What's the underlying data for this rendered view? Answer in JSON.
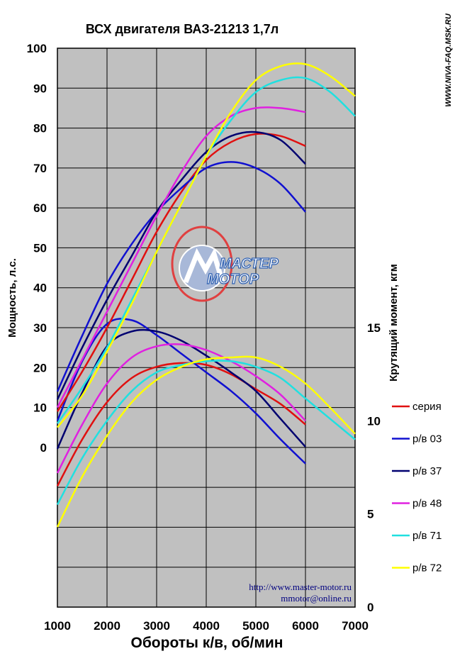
{
  "chart_data": {
    "type": "line",
    "title": "ВСХ двигателя ВАЗ-21213  1,7л",
    "xlabel": "Обороты к/в, об/мин",
    "ylabel": "Мощность, л.с.",
    "y2label": "Крутящий момент, кгм",
    "xlim": [
      1000,
      7000
    ],
    "ylim": [
      -40,
      100
    ],
    "y2lim": [
      0,
      30
    ],
    "xticks": [
      "1000",
      "2000",
      "3000",
      "4000",
      "5000",
      "6000",
      "7000"
    ],
    "yticks": [
      "100",
      "90",
      "80",
      "70",
      "60",
      "50",
      "40",
      "30",
      "20",
      "10",
      "0"
    ],
    "y2ticks": [
      "15",
      "10",
      "5",
      "0"
    ],
    "grid": true,
    "legend_position": "right",
    "power_series": [
      {
        "name": "серия",
        "color": "#e01010",
        "x": [
          1000,
          1500,
          2000,
          2500,
          3000,
          3500,
          4000,
          4500,
          5000,
          5500,
          6000
        ],
        "values": [
          9,
          19,
          30,
          42,
          54,
          64,
          72,
          76.5,
          78.5,
          78,
          75.5
        ]
      },
      {
        "name": "р/в 03",
        "color": "#1010d0",
        "x": [
          1000,
          1500,
          2000,
          2500,
          3000,
          3500,
          4000,
          4500,
          5000,
          5500,
          6000
        ],
        "values": [
          14,
          28,
          41,
          51,
          59,
          65,
          70,
          71.5,
          70,
          66,
          59
        ]
      },
      {
        "name": "р/в 37",
        "color": "#000070",
        "x": [
          1000,
          1500,
          2000,
          2500,
          3000,
          3500,
          4000,
          4500,
          5000,
          5500,
          6000
        ],
        "values": [
          12,
          25,
          37,
          48,
          59,
          67,
          74,
          78,
          79,
          77,
          71
        ]
      },
      {
        "name": "р/в 48",
        "color": "#e020e0",
        "x": [
          1000,
          1500,
          2000,
          2500,
          3000,
          3500,
          4000,
          4500,
          5000,
          5500,
          6000
        ],
        "values": [
          10,
          22,
          34,
          46,
          58,
          69,
          78,
          83,
          85,
          85,
          84
        ]
      },
      {
        "name": "р/в 71",
        "color": "#20e0e0",
        "x": [
          1000,
          1500,
          2000,
          2500,
          3000,
          3500,
          4000,
          4500,
          5000,
          5500,
          6000,
          6500,
          7000
        ],
        "values": [
          6,
          15,
          25,
          37,
          49,
          61,
          73,
          82,
          89,
          92,
          92.5,
          89,
          83
        ]
      },
      {
        "name": "р/в 72",
        "color": "#ffff00",
        "x": [
          1000,
          1500,
          2000,
          2500,
          3000,
          3500,
          4000,
          4500,
          5000,
          5500,
          6000,
          6500,
          7000
        ],
        "values": [
          5,
          13,
          24,
          36,
          49,
          61,
          73,
          84,
          92,
          95.5,
          96,
          93,
          88
        ]
      }
    ],
    "torque_series": [
      {
        "name": "серия",
        "color": "#e01010",
        "x": [
          1000,
          1500,
          2000,
          2500,
          3000,
          3500,
          4000,
          4500,
          5000,
          5500,
          6000
        ],
        "values": [
          6.5,
          9.0,
          11.0,
          12.3,
          12.9,
          13.1,
          13.0,
          12.5,
          11.7,
          10.9,
          9.8
        ]
      },
      {
        "name": "р/в 03",
        "color": "#1010d0",
        "x": [
          1000,
          1500,
          2000,
          2500,
          3000,
          3500,
          4000,
          4500,
          5000,
          5500,
          6000
        ],
        "values": [
          10.0,
          13.2,
          15.2,
          15.4,
          14.6,
          13.6,
          12.6,
          11.6,
          10.4,
          9.0,
          7.7
        ]
      },
      {
        "name": "р/в 37",
        "color": "#000070",
        "x": [
          1000,
          1500,
          2000,
          2500,
          3000,
          3500,
          4000,
          4500,
          5000,
          5500,
          6000
        ],
        "values": [
          8.5,
          11.5,
          14.0,
          14.8,
          14.8,
          14.3,
          13.5,
          12.6,
          11.6,
          10.1,
          8.6
        ]
      },
      {
        "name": "р/в 48",
        "color": "#e020e0",
        "x": [
          1000,
          1500,
          2000,
          2500,
          3000,
          3500,
          4000,
          4500,
          5000,
          5500,
          6000
        ],
        "values": [
          7.2,
          9.8,
          12.0,
          13.4,
          14.0,
          14.1,
          13.8,
          13.2,
          12.4,
          11.4,
          10.0
        ]
      },
      {
        "name": "р/в 71",
        "color": "#20e0e0",
        "x": [
          1000,
          1500,
          2000,
          2500,
          3000,
          3500,
          4000,
          4500,
          5000,
          5500,
          6000,
          6500,
          7000
        ],
        "values": [
          5.5,
          8.0,
          10.0,
          11.6,
          12.6,
          13.0,
          13.2,
          13.2,
          12.9,
          12.3,
          11.2,
          10.1,
          9.0
        ]
      },
      {
        "name": "р/в 72",
        "color": "#ffff00",
        "x": [
          1000,
          1500,
          2000,
          2500,
          3000,
          3500,
          4000,
          4500,
          5000,
          5500,
          6000,
          6500,
          7000
        ],
        "values": [
          4.3,
          7.0,
          9.2,
          11.0,
          12.2,
          12.9,
          13.3,
          13.4,
          13.4,
          12.9,
          12.0,
          10.7,
          9.3
        ]
      }
    ]
  },
  "watermark": {
    "side_url": "WWW.NIVA-FAQ.MSK.RU",
    "logo_top": "МАСТЕР",
    "logo_bottom": "МОТОР",
    "site": "http://www.master-motor.ru",
    "email": "mmotor@online.ru"
  },
  "colors": {
    "plot_background": "#c0c0c0",
    "grid": "#000000"
  }
}
